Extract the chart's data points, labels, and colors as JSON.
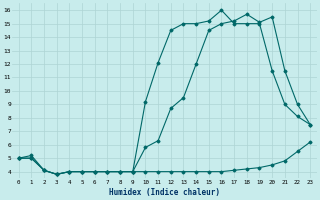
{
  "xlabel": "Humidex (Indice chaleur)",
  "bg_color": "#c8ecec",
  "grid_color": "#aed4d4",
  "line_color": "#006868",
  "xlim": [
    -0.5,
    23.5
  ],
  "ylim": [
    3.5,
    16.5
  ],
  "xticks": [
    0,
    1,
    2,
    3,
    4,
    5,
    6,
    7,
    8,
    9,
    10,
    11,
    12,
    13,
    14,
    15,
    16,
    17,
    18,
    19,
    20,
    21,
    22,
    23
  ],
  "yticks": [
    4,
    5,
    6,
    7,
    8,
    9,
    10,
    11,
    12,
    13,
    14,
    15,
    16
  ],
  "series1_x": [
    0,
    1,
    2,
    3,
    4,
    5,
    6,
    7,
    8,
    9,
    10,
    11,
    12,
    13,
    14,
    15,
    16,
    17,
    18,
    19,
    20,
    21,
    22,
    23
  ],
  "series1_y": [
    5.0,
    5.2,
    4.1,
    3.8,
    4.0,
    4.0,
    4.0,
    4.0,
    4.0,
    4.0,
    4.0,
    4.0,
    4.0,
    4.0,
    4.0,
    4.0,
    4.0,
    4.1,
    4.2,
    4.3,
    4.5,
    4.8,
    5.5,
    6.2
  ],
  "series2_x": [
    0,
    1,
    2,
    3,
    4,
    5,
    6,
    7,
    8,
    9,
    10,
    11,
    12,
    13,
    14,
    15,
    16,
    17,
    18,
    19,
    20,
    21,
    22,
    23
  ],
  "series2_y": [
    5.0,
    5.0,
    4.1,
    3.8,
    4.0,
    4.0,
    4.0,
    4.0,
    4.0,
    4.0,
    5.8,
    6.3,
    8.7,
    9.5,
    12.0,
    14.5,
    15.0,
    15.2,
    15.7,
    15.1,
    15.5,
    11.5,
    9.0,
    7.5
  ],
  "series3_x": [
    0,
    1,
    2,
    3,
    4,
    5,
    6,
    7,
    8,
    9,
    10,
    11,
    12,
    13,
    14,
    15,
    16,
    17,
    18,
    19,
    20,
    21,
    22,
    23
  ],
  "series3_y": [
    5.0,
    5.0,
    4.1,
    3.8,
    4.0,
    4.0,
    4.0,
    4.0,
    4.0,
    4.0,
    9.2,
    12.1,
    14.5,
    15.0,
    15.0,
    15.2,
    16.0,
    15.0,
    15.0,
    15.0,
    11.5,
    9.0,
    8.1,
    7.5
  ]
}
